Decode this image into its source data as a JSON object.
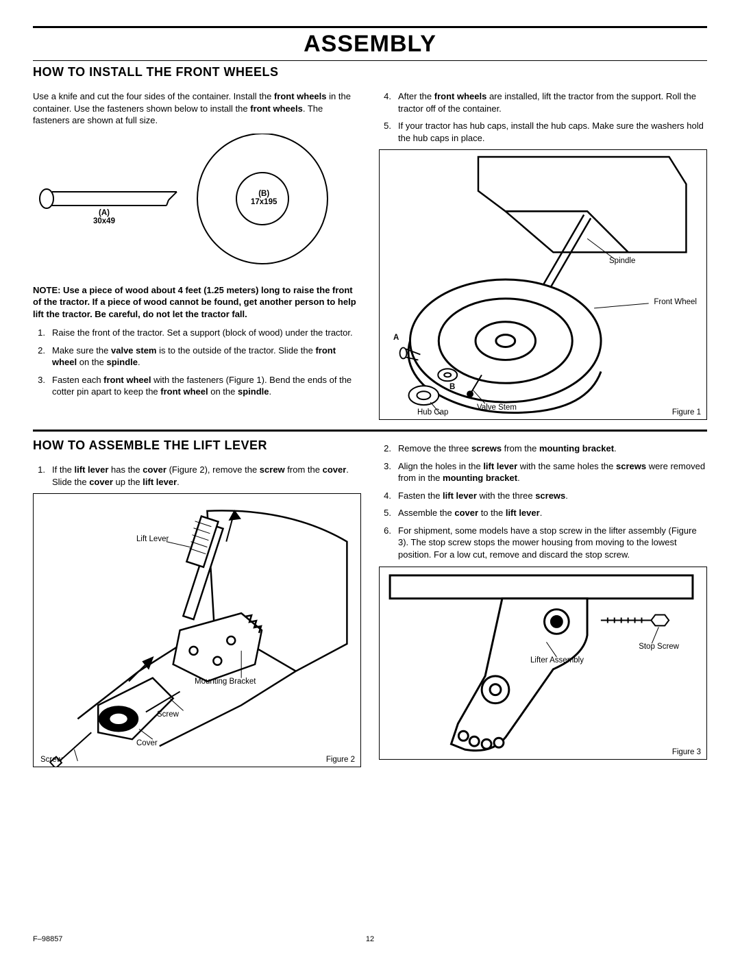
{
  "page": {
    "main_title": "ASSEMBLY",
    "doc_code": "F–98857",
    "page_number": "12"
  },
  "section1": {
    "title": "HOW TO INSTALL THE FRONT WHEELS",
    "intro": "Use a knife and cut the four sides of the container. Install the <b>front wheels</b> in the container. Use the fasteners shown below to install the <b>front wheels</b>. The fasteners are shown at full size.",
    "fastener_a_label": "(A)\n30x49",
    "fastener_b_label": "(B)\n17x195",
    "note": "NOTE: Use a piece of wood about 4 feet (1.25 meters) long to raise the front of the tractor. If a piece of wood cannot be found, get another person to help lift the tractor. Be careful, do not let the tractor fall.",
    "left_steps": [
      "Raise the front of the tractor. Set a support (block of wood) under the tractor.",
      "Make sure the <b>valve stem</b> is to the outside of the tractor. Slide the <b>front wheel</b> on the <b>spindle</b>.",
      "Fasten each <b>front wheel</b> with the fasteners (Figure 1). Bend the ends of the cotter pin apart to keep the <b>front wheel</b> on the <b>spindle</b>."
    ],
    "right_steps_start": 4,
    "right_steps": [
      "After the <b>front wheels</b> are installed, lift the tractor from the support. Roll the tractor off of the container.",
      "If your tractor has hub caps, install the hub caps. Make sure the washers hold the hub caps in place."
    ],
    "fig1": {
      "caption": "Figure 1",
      "callouts": {
        "spindle": "Spindle",
        "front_wheel": "Front Wheel",
        "valve_stem": "Valve Stem",
        "hub_cap": "Hub Cap",
        "a": "A",
        "b": "B"
      }
    }
  },
  "section2": {
    "title": "HOW TO ASSEMBLE THE LIFT LEVER",
    "left_steps": [
      "If the <b>lift lever</b> has the <b>cover</b> (Figure 2), remove the <b>screw</b> from the <b>cover</b>. Slide the <b>cover</b> up the <b>lift lever</b>."
    ],
    "right_steps_start": 2,
    "right_steps": [
      "Remove the three <b>screws</b> from the <b>mounting bracket</b>.",
      "Align the holes in the <b>lift lever</b> with the same holes the <b>screws</b> were removed from in the <b>mounting bracket</b>.",
      "Fasten the <b>lift lever</b> with the three <b>screws</b>.",
      "Assemble the <b>cover</b> to the <b>lift lever</b>.",
      "For shipment, some models have a stop screw in the lifter assembly (Figure 3). The stop screw stops the mower housing from moving to the lowest position. For a low cut, remove and discard the stop screw."
    ],
    "fig2": {
      "caption": "Figure 2",
      "callouts": {
        "lift_lever": "Lift Lever",
        "mounting_bracket": "Mounting Bracket",
        "screw1": "Screw",
        "cover": "Cover",
        "screw2": "Screw"
      }
    },
    "fig3": {
      "caption": "Figure 3",
      "callouts": {
        "stop_screw": "Stop Screw",
        "lifter_assembly": "Lifter Assembly"
      }
    }
  },
  "style": {
    "page_bg": "#ffffff",
    "text_color": "#000000",
    "border_color": "#000000",
    "title_fontsize_pt": 26,
    "section_title_fontsize_pt": 14,
    "body_fontsize_pt": 10,
    "label_fontsize_pt": 9
  }
}
